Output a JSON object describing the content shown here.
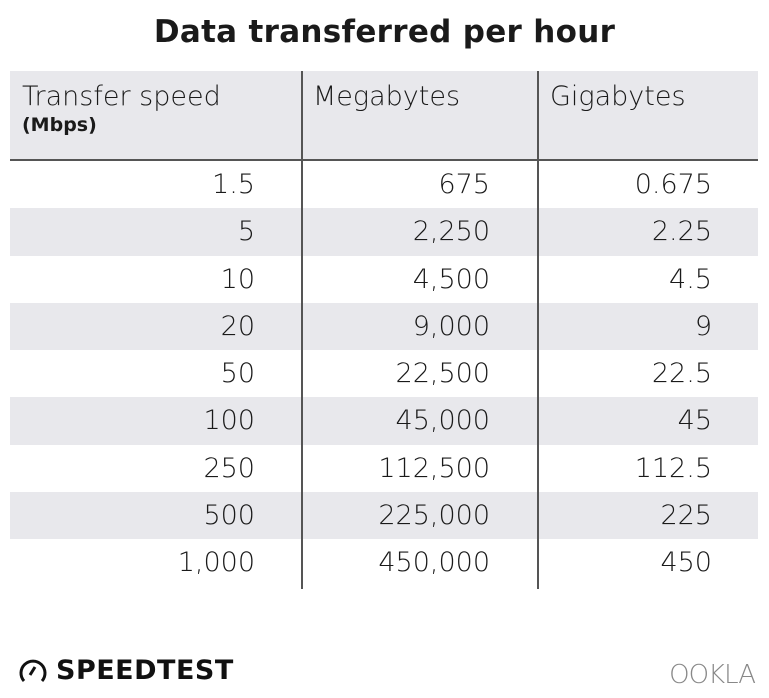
{
  "title": "Data transferred per hour",
  "chart_data": {
    "type": "table",
    "title": "Data transferred per hour",
    "columns": [
      {
        "label": "Transfer speed",
        "sublabel": "(Mbps)"
      },
      {
        "label": "Megabytes"
      },
      {
        "label": "Gigabytes"
      }
    ],
    "rows": [
      [
        "1.5",
        "675",
        "0.675"
      ],
      [
        "5",
        "2,250",
        "2.25"
      ],
      [
        "10",
        "4,500",
        "4.5"
      ],
      [
        "20",
        "9,000",
        "9"
      ],
      [
        "50",
        "22,500",
        "22.5"
      ],
      [
        "100",
        "45,000",
        "45"
      ],
      [
        "250",
        "112,500",
        "112.5"
      ],
      [
        "500",
        "225,000",
        "225"
      ],
      [
        "1,000",
        "450,000",
        "450"
      ]
    ]
  },
  "colors": {
    "header_bg": "#e8e8ec",
    "stripe_bg": "#e8e8ec",
    "rule": "#555555",
    "text": "#1a1a1a"
  },
  "footer": {
    "left_logo": "SPEEDTEST",
    "right_logo": "OOKLA",
    "left_icon": "speedometer-icon"
  }
}
